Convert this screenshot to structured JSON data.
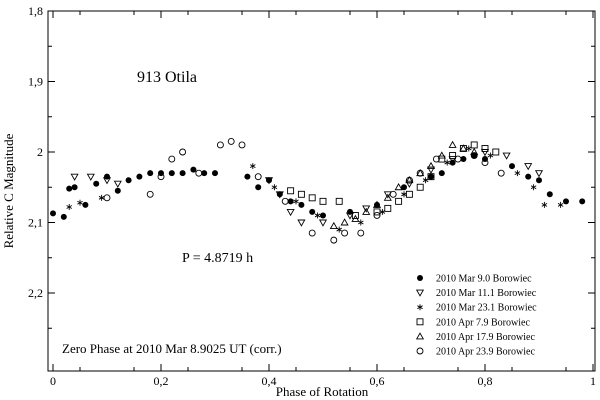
{
  "chart_data": {
    "type": "scatter",
    "title": "913 Otila",
    "period_label": "P = 4.8719 h",
    "zero_phase_label": "Zero Phase at 2010 Mar 8.9025 UT (corr.)",
    "xlabel": "Phase of Rotation",
    "ylabel": "Relative C Magnitude",
    "xlim": [
      0,
      1
    ],
    "ylim": [
      2.3,
      1.8
    ],
    "x_ticks": [
      0,
      0.2,
      0.4,
      0.6,
      0.8,
      1
    ],
    "x_tick_labels": [
      "0",
      "0,2",
      "0,4",
      "0,6",
      "0,8",
      "1"
    ],
    "y_ticks": [
      1.8,
      1.9,
      2.0,
      2.1,
      2.2
    ],
    "y_tick_labels": [
      "1,8",
      "1,9",
      "2",
      "2,1",
      "2,2"
    ],
    "legend_position": "bottom-right",
    "series": [
      {
        "name": "2010 Mar 9.0 Borowiec",
        "marker": "filled-circle",
        "x": [
          0.0,
          0.02,
          0.03,
          0.04,
          0.06,
          0.08,
          0.1,
          0.12,
          0.14,
          0.16,
          0.18,
          0.2,
          0.22,
          0.24,
          0.26,
          0.28,
          0.3,
          0.36,
          0.38,
          0.4,
          0.42,
          0.44,
          0.46,
          0.48,
          0.5,
          0.55,
          0.6,
          0.65,
          0.7,
          0.72,
          0.74,
          0.76,
          0.78,
          0.8,
          0.85,
          0.88,
          0.9,
          0.92,
          0.95,
          0.98
        ],
        "y": [
          2.087,
          2.092,
          2.052,
          2.05,
          2.075,
          2.045,
          2.035,
          2.055,
          2.04,
          2.035,
          2.03,
          2.03,
          2.03,
          2.03,
          2.025,
          2.03,
          2.03,
          2.035,
          2.05,
          2.04,
          2.06,
          2.07,
          2.075,
          2.085,
          2.09,
          2.085,
          2.075,
          2.05,
          2.035,
          2.03,
          2.015,
          2.01,
          2.005,
          2.01,
          2.02,
          2.035,
          2.04,
          2.06,
          2.07,
          2.07
        ]
      },
      {
        "name": "2010 Mar 11.1 Borowiec",
        "marker": "triangle-down",
        "x": [
          0.04,
          0.07,
          0.1,
          0.12,
          0.4,
          0.42,
          0.44,
          0.46,
          0.5,
          0.55,
          0.58,
          0.62,
          0.66,
          0.7,
          0.74,
          0.8,
          0.84,
          0.88,
          0.9
        ],
        "y": [
          2.035,
          2.035,
          2.04,
          2.045,
          2.04,
          2.06,
          2.085,
          2.1,
          2.1,
          2.09,
          2.08,
          2.06,
          2.045,
          2.025,
          2.01,
          2.0,
          2.005,
          2.02,
          2.03
        ]
      },
      {
        "name": "2010 Mar 23.1 Borowiec",
        "marker": "asterisk",
        "x": [
          0.03,
          0.05,
          0.09,
          0.37,
          0.41,
          0.45,
          0.49,
          0.53,
          0.57,
          0.61,
          0.65,
          0.69,
          0.73,
          0.77,
          0.81,
          0.86,
          0.89,
          0.91,
          0.94
        ],
        "y": [
          2.078,
          2.072,
          2.065,
          2.02,
          2.05,
          2.07,
          2.09,
          2.11,
          2.1,
          2.085,
          2.06,
          2.04,
          2.015,
          1.995,
          2.005,
          2.03,
          2.05,
          2.075,
          2.075
        ]
      },
      {
        "name": "2010 Apr 7.9 Borowiec",
        "marker": "square",
        "x": [
          0.44,
          0.46,
          0.48,
          0.5,
          0.53,
          0.56,
          0.6,
          0.62,
          0.64,
          0.66,
          0.68,
          0.7,
          0.72,
          0.74,
          0.76,
          0.78,
          0.8,
          0.82
        ],
        "y": [
          2.055,
          2.06,
          2.065,
          2.07,
          2.07,
          2.09,
          2.085,
          2.08,
          2.07,
          2.06,
          2.05,
          2.035,
          2.01,
          2.005,
          1.995,
          1.99,
          1.995,
          2.0
        ]
      },
      {
        "name": "2010 Apr 17.9 Borowiec",
        "marker": "triangle-up",
        "x": [
          0.52,
          0.54,
          0.56,
          0.58,
          0.6,
          0.62,
          0.64,
          0.66,
          0.68,
          0.7,
          0.72,
          0.74,
          0.76,
          0.78
        ],
        "y": [
          2.105,
          2.1,
          2.095,
          2.085,
          2.075,
          2.065,
          2.05,
          2.04,
          2.03,
          2.02,
          2.005,
          1.99,
          1.995,
          2.0
        ]
      },
      {
        "name": "2010 Apr 23.9 Borowiec",
        "marker": "open-circle",
        "x": [
          0.1,
          0.18,
          0.2,
          0.22,
          0.24,
          0.27,
          0.31,
          0.33,
          0.35,
          0.38,
          0.43,
          0.48,
          0.52,
          0.54,
          0.57,
          0.6,
          0.63,
          0.66,
          0.68,
          0.71,
          0.75,
          0.78,
          0.8,
          0.83
        ],
        "y": [
          2.065,
          2.06,
          2.035,
          2.01,
          2.0,
          2.03,
          1.99,
          1.985,
          1.99,
          2.035,
          2.07,
          2.115,
          2.125,
          2.115,
          2.115,
          2.09,
          2.06,
          2.04,
          2.03,
          2.01,
          2.01,
          2.005,
          2.015,
          2.03
        ]
      }
    ]
  }
}
